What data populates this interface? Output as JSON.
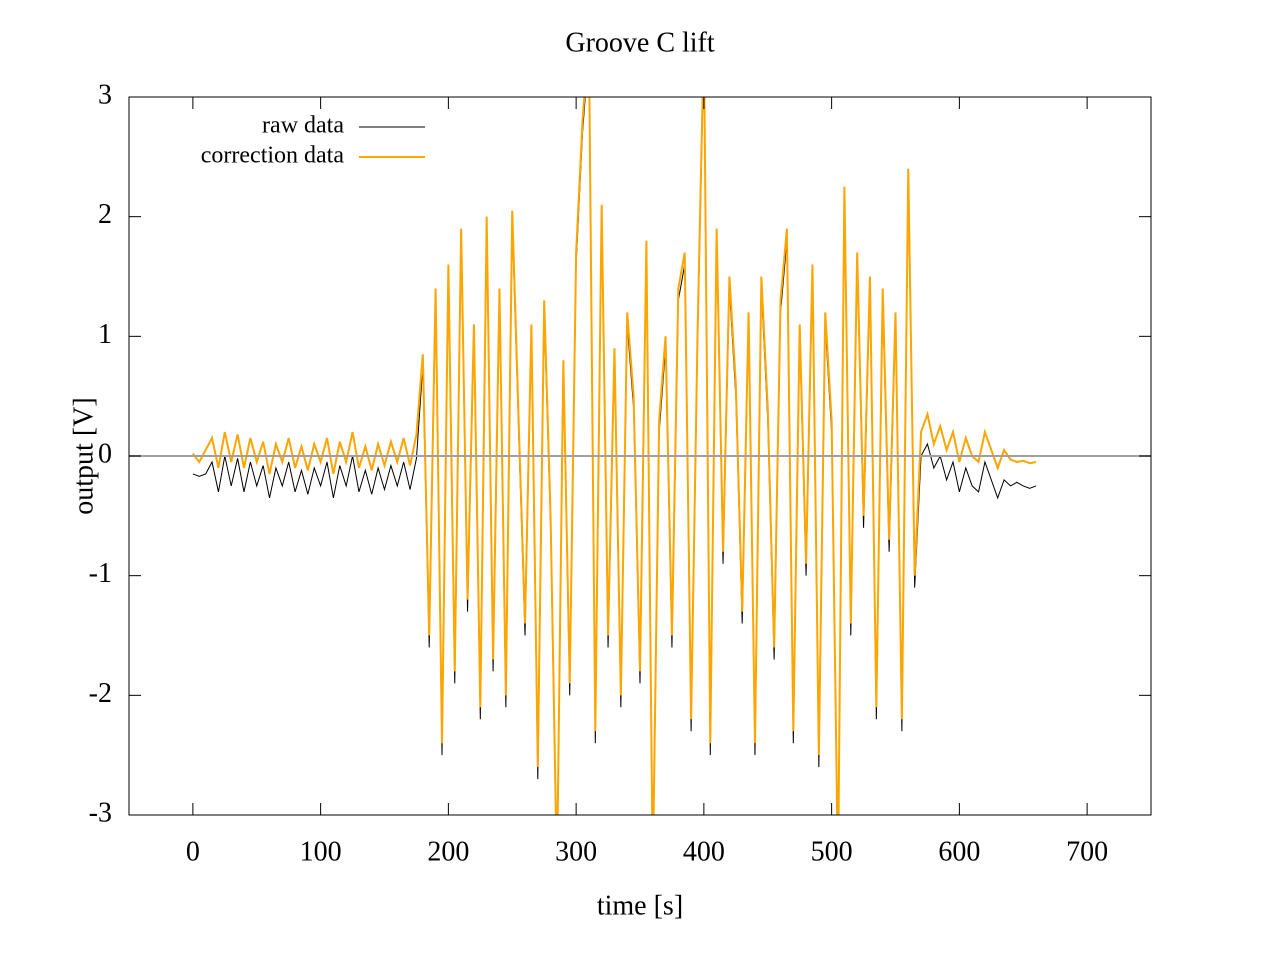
{
  "chart_data": {
    "type": "line",
    "title": "Groove C lift",
    "x_label": "time [s]",
    "y_label": "output [V]",
    "x": [
      0,
      5,
      10,
      15,
      20,
      25,
      30,
      35,
      40,
      45,
      50,
      55,
      60,
      65,
      70,
      75,
      80,
      85,
      90,
      95,
      100,
      105,
      110,
      115,
      120,
      125,
      130,
      135,
      140,
      145,
      150,
      155,
      160,
      165,
      170,
      175,
      180,
      185,
      190,
      195,
      200,
      205,
      210,
      215,
      220,
      225,
      230,
      235,
      240,
      245,
      250,
      255,
      260,
      265,
      270,
      275,
      280,
      285,
      290,
      295,
      300,
      305,
      310,
      315,
      320,
      325,
      330,
      335,
      340,
      345,
      350,
      355,
      360,
      365,
      370,
      375,
      380,
      385,
      390,
      395,
      400,
      405,
      410,
      415,
      420,
      425,
      430,
      435,
      440,
      445,
      450,
      455,
      460,
      465,
      470,
      475,
      480,
      485,
      490,
      495,
      500,
      505,
      510,
      515,
      520,
      525,
      530,
      535,
      540,
      545,
      550,
      555,
      560,
      565,
      570,
      575,
      580,
      585,
      590,
      595,
      600,
      605,
      610,
      615,
      620,
      625,
      630,
      635,
      640,
      645,
      650,
      655,
      660
    ],
    "series": [
      {
        "name": "raw data",
        "color": "#000000",
        "width": 1,
        "values": [
          -0.15,
          -0.17,
          -0.15,
          -0.05,
          -0.3,
          0.0,
          -0.25,
          -0.02,
          -0.3,
          -0.05,
          -0.25,
          -0.08,
          -0.35,
          -0.1,
          -0.25,
          -0.05,
          -0.3,
          -0.12,
          -0.32,
          -0.1,
          -0.25,
          -0.05,
          -0.35,
          -0.08,
          -0.25,
          0.0,
          -0.3,
          -0.12,
          -0.32,
          -0.1,
          -0.28,
          -0.08,
          -0.25,
          -0.05,
          -0.28,
          -0.02,
          0.75,
          -1.6,
          1.3,
          -2.5,
          1.5,
          -1.9,
          1.8,
          -1.3,
          1.0,
          -2.2,
          1.9,
          -1.8,
          1.3,
          -2.1,
          1.95,
          0.2,
          -1.5,
          1.0,
          -2.7,
          1.2,
          -0.6,
          -3.6,
          0.7,
          -2.0,
          1.6,
          2.7,
          3.4,
          -2.4,
          2.0,
          -1.6,
          0.8,
          -2.1,
          1.1,
          0.4,
          -1.9,
          1.7,
          -3.6,
          0.2,
          0.9,
          -1.6,
          1.3,
          1.6,
          -2.3,
          0.9,
          3.4,
          -2.5,
          1.8,
          -0.9,
          1.4,
          0.5,
          -1.4,
          1.1,
          -2.5,
          1.4,
          0.3,
          -1.7,
          1.2,
          1.8,
          -2.4,
          1.0,
          -1.0,
          1.5,
          -2.6,
          1.1,
          0.2,
          -3.6,
          2.15,
          -1.5,
          1.6,
          -0.6,
          1.4,
          -2.2,
          1.3,
          -0.8,
          1.1,
          -2.3,
          2.3,
          -1.1,
          0.0,
          0.1,
          -0.1,
          0.0,
          -0.2,
          -0.05,
          -0.3,
          -0.1,
          -0.25,
          -0.3,
          -0.05,
          -0.2,
          -0.35,
          -0.2,
          -0.25,
          -0.22,
          -0.25,
          -0.27,
          -0.25
        ]
      },
      {
        "name": "correction data",
        "color": "#ffa500",
        "width": 2,
        "values": [
          0.02,
          -0.05,
          0.05,
          0.15,
          -0.1,
          0.2,
          -0.05,
          0.18,
          -0.1,
          0.15,
          -0.05,
          0.12,
          -0.15,
          0.1,
          -0.05,
          0.15,
          -0.1,
          0.08,
          -0.12,
          0.1,
          -0.05,
          0.15,
          -0.15,
          0.12,
          -0.05,
          0.2,
          -0.1,
          0.08,
          -0.12,
          0.1,
          -0.08,
          0.12,
          -0.05,
          0.15,
          -0.08,
          0.18,
          0.85,
          -1.5,
          1.4,
          -2.4,
          1.6,
          -1.8,
          1.9,
          -1.2,
          1.1,
          -2.1,
          2.0,
          -1.7,
          1.4,
          -2.0,
          2.05,
          0.3,
          -1.4,
          1.1,
          -2.6,
          1.3,
          -0.5,
          -3.5,
          0.8,
          -1.9,
          1.7,
          2.8,
          3.5,
          -2.3,
          2.1,
          -1.5,
          0.9,
          -2.0,
          1.2,
          0.5,
          -1.8,
          1.8,
          -3.5,
          0.3,
          1.0,
          -1.5,
          1.4,
          1.7,
          -2.2,
          1.0,
          3.5,
          -2.4,
          1.9,
          -0.8,
          1.5,
          0.6,
          -1.3,
          1.2,
          -2.4,
          1.5,
          0.4,
          -1.6,
          1.3,
          1.9,
          -2.3,
          1.1,
          -0.9,
          1.6,
          -2.5,
          1.2,
          0.3,
          -3.5,
          2.25,
          -1.4,
          1.7,
          -0.5,
          1.5,
          -2.1,
          1.4,
          -0.7,
          1.2,
          -2.2,
          2.4,
          -1.0,
          0.2,
          0.35,
          0.1,
          0.25,
          0.05,
          0.2,
          -0.05,
          0.15,
          0.0,
          -0.05,
          0.2,
          0.05,
          -0.1,
          0.05,
          -0.03,
          -0.05,
          -0.04,
          -0.06,
          -0.05
        ]
      }
    ],
    "xlim": [
      -50,
      750
    ],
    "ylim": [
      -3,
      3
    ],
    "xticks": [
      0,
      100,
      200,
      300,
      400,
      500,
      600,
      700
    ],
    "yticks": [
      -3,
      -2,
      -1,
      0,
      1,
      2,
      3
    ],
    "zeroaxis": true,
    "legend": "top-left"
  }
}
